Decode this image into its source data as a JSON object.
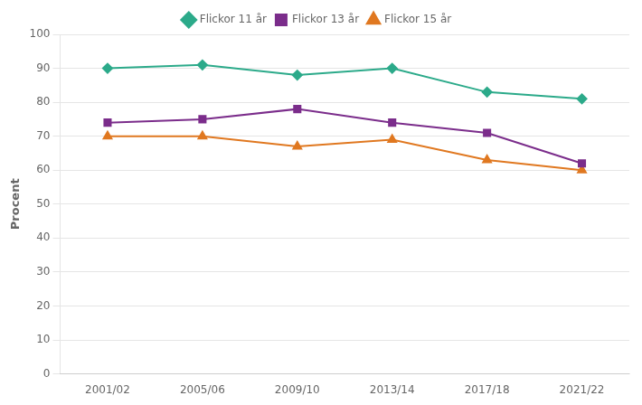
{
  "chart_data": {
    "type": "line",
    "ylabel": "Procent",
    "categories": [
      "2001/02",
      "2005/06",
      "2009/10",
      "2013/14",
      "2017/18",
      "2021/22"
    ],
    "series": [
      {
        "name": "Flickor 11 år",
        "color": "#2caa8a",
        "marker": "diamond",
        "values": [
          90,
          91,
          88,
          90,
          83,
          81
        ]
      },
      {
        "name": "Flickor 13 år",
        "color": "#7b2d8b",
        "marker": "square",
        "values": [
          74,
          75,
          78,
          74,
          71,
          62
        ]
      },
      {
        "name": "Flickor 15 år",
        "color": "#e07820",
        "marker": "triangle",
        "values": [
          70,
          70,
          67,
          69,
          63,
          60
        ]
      }
    ],
    "ylim": [
      0,
      100
    ],
    "yticks": [
      0,
      10,
      20,
      30,
      40,
      50,
      60,
      70,
      80,
      90,
      100
    ],
    "grid": true,
    "legend": "top"
  }
}
